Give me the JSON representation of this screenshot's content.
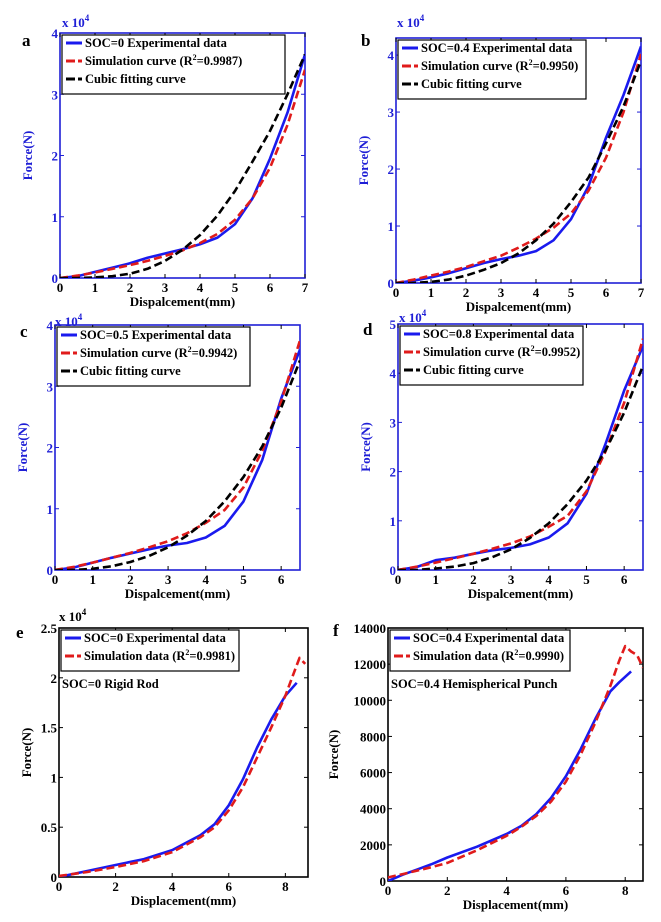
{
  "figure": {
    "panels_count": 6
  },
  "chart_data": [
    {
      "id": "a",
      "type": "line",
      "panel_label": "a",
      "title": "",
      "xlabel": "Dispalcement(mm)",
      "ylabel": "Force(N)",
      "y_multiplier": "x 10^4",
      "y_multiplier_base": "x 10",
      "y_multiplier_exp": "4",
      "xlim": [
        0,
        7
      ],
      "ylim": [
        0,
        4
      ],
      "xticks": [
        0,
        1,
        2,
        3,
        4,
        5,
        6,
        7
      ],
      "yticks": [
        0,
        1,
        2,
        3,
        4
      ],
      "axis_color": "#1f1fd6",
      "legend": {
        "placement": "top-left"
      },
      "annotation": "",
      "series": [
        {
          "name": "SOC=0 Experimental data",
          "style": "solid",
          "color": "#1a1aee",
          "x": [
            0,
            0.5,
            1,
            1.5,
            2,
            2.5,
            3,
            3.5,
            4,
            4.5,
            5,
            5.5,
            6,
            6.5,
            7
          ],
          "y": [
            0,
            0.03,
            0.1,
            0.17,
            0.24,
            0.33,
            0.4,
            0.47,
            0.55,
            0.66,
            0.88,
            1.3,
            1.95,
            2.7,
            3.65
          ]
        },
        {
          "name": "Simulation curve (R²=0.9987)",
          "name_parts": [
            "Simulation curve (R",
            "2",
            "=0.9987)"
          ],
          "style": "dashed",
          "color": "#e01b1b",
          "x": [
            0,
            0.5,
            1,
            1.5,
            2,
            2.5,
            3,
            3.5,
            4,
            4.5,
            5,
            5.5,
            6,
            6.5,
            7
          ],
          "y": [
            0,
            0.04,
            0.09,
            0.15,
            0.21,
            0.28,
            0.36,
            0.45,
            0.57,
            0.72,
            0.95,
            1.3,
            1.8,
            2.5,
            3.4
          ]
        },
        {
          "name": "Cubic fitting curve",
          "style": "dashed",
          "color": "#000000",
          "x": [
            0,
            0.5,
            1,
            1.5,
            2,
            2.5,
            3,
            3.5,
            4,
            4.5,
            5,
            5.5,
            6,
            6.5,
            7
          ],
          "y": [
            0,
            0.0,
            0.01,
            0.03,
            0.07,
            0.15,
            0.28,
            0.46,
            0.7,
            1.02,
            1.42,
            1.9,
            2.4,
            3.0,
            3.65
          ]
        }
      ]
    },
    {
      "id": "b",
      "type": "line",
      "panel_label": "b",
      "title": "",
      "xlabel": "Dispalcement(mm)",
      "ylabel": "Force(N)",
      "y_multiplier": "x 10^4",
      "y_multiplier_base": "x 10",
      "y_multiplier_exp": "4",
      "xlim": [
        0,
        7
      ],
      "ylim": [
        0,
        4.3
      ],
      "xticks": [
        0,
        1,
        2,
        3,
        4,
        5,
        6,
        7
      ],
      "yticks": [
        0,
        1,
        2,
        3,
        4
      ],
      "axis_color": "#1f1fd6",
      "legend": {
        "placement": "top-left"
      },
      "annotation": "",
      "series": [
        {
          "name": "SOC=0.4 Experimental data",
          "style": "solid",
          "color": "#1a1aee",
          "x": [
            0,
            0.5,
            1,
            1.5,
            2,
            2.5,
            3,
            3.5,
            4,
            4.5,
            5,
            5.5,
            6,
            6.5,
            7
          ],
          "y": [
            0,
            0.04,
            0.1,
            0.17,
            0.26,
            0.35,
            0.42,
            0.48,
            0.56,
            0.75,
            1.12,
            1.7,
            2.55,
            3.3,
            4.15
          ]
        },
        {
          "name": "Simulation curve (R²=0.9950)",
          "name_parts": [
            "Simulation curve (R",
            "2",
            "=0.9950)"
          ],
          "style": "dashed",
          "color": "#e01b1b",
          "x": [
            0,
            0.5,
            1,
            1.5,
            2,
            2.5,
            3,
            3.5,
            4,
            4.5,
            5,
            5.5,
            6,
            6.5,
            7
          ],
          "y": [
            0,
            0.06,
            0.13,
            0.2,
            0.28,
            0.38,
            0.48,
            0.62,
            0.78,
            0.97,
            1.22,
            1.62,
            2.2,
            3.0,
            4.02
          ]
        },
        {
          "name": "Cubic fitting curve",
          "style": "dashed",
          "color": "#000000",
          "x": [
            0,
            0.5,
            1,
            1.5,
            2,
            2.5,
            3,
            3.5,
            4,
            4.5,
            5,
            5.5,
            6,
            6.5,
            7
          ],
          "y": [
            0,
            0.0,
            0.02,
            0.06,
            0.13,
            0.23,
            0.35,
            0.52,
            0.75,
            1.04,
            1.42,
            1.85,
            2.45,
            3.1,
            3.9
          ]
        }
      ]
    },
    {
      "id": "c",
      "type": "line",
      "panel_label": "c",
      "title": "",
      "xlabel": "Dispalcement(mm)",
      "ylabel": "Force(N)",
      "y_multiplier": "x 10^4",
      "y_multiplier_base": "x 10",
      "y_multiplier_exp": "4",
      "xlim": [
        0,
        6.5
      ],
      "ylim": [
        0,
        4
      ],
      "xticks": [
        0,
        1,
        2,
        3,
        4,
        5,
        6
      ],
      "yticks": [
        0,
        1,
        2,
        3,
        4
      ],
      "axis_color": "#1f1fd6",
      "legend": {
        "placement": "top-left"
      },
      "annotation": "",
      "series": [
        {
          "name": "SOC=0.5 Experimental data",
          "style": "solid",
          "color": "#1a1aee",
          "x": [
            0,
            0.5,
            1,
            1.5,
            2,
            2.5,
            3,
            3.5,
            4,
            4.5,
            5,
            5.5,
            6,
            6.5
          ],
          "y": [
            0,
            0.04,
            0.12,
            0.2,
            0.27,
            0.34,
            0.4,
            0.44,
            0.53,
            0.72,
            1.12,
            1.8,
            2.8,
            3.6
          ]
        },
        {
          "name": "Simulation curve (R²=0.9942)",
          "name_parts": [
            "Simulation curve (R",
            "2",
            "=0.9942)"
          ],
          "style": "dashed",
          "color": "#e01b1b",
          "x": [
            0,
            0.5,
            1,
            1.5,
            2,
            2.5,
            3,
            3.5,
            4,
            4.5,
            5,
            5.5,
            6,
            6.5
          ],
          "y": [
            0,
            0.05,
            0.12,
            0.2,
            0.28,
            0.37,
            0.47,
            0.6,
            0.77,
            0.98,
            1.35,
            1.95,
            2.75,
            3.75
          ]
        },
        {
          "name": "Cubic fitting curve",
          "style": "dashed",
          "color": "#000000",
          "x": [
            0,
            0.5,
            1,
            1.5,
            2,
            2.5,
            3,
            3.5,
            4,
            4.5,
            5,
            5.5,
            6,
            6.5
          ],
          "y": [
            0,
            0.0,
            0.02,
            0.06,
            0.13,
            0.23,
            0.37,
            0.56,
            0.8,
            1.12,
            1.52,
            2.02,
            2.65,
            3.42
          ]
        }
      ]
    },
    {
      "id": "d",
      "type": "line",
      "panel_label": "d",
      "title": "",
      "xlabel": "Dispalcement(mm)",
      "ylabel": "Force(N)",
      "y_multiplier": "x 10^4",
      "y_multiplier_base": "x 10",
      "y_multiplier_exp": "4",
      "xlim": [
        0,
        6.5
      ],
      "ylim": [
        0,
        5
      ],
      "xticks": [
        0,
        1,
        2,
        3,
        4,
        5,
        6
      ],
      "yticks": [
        0,
        1,
        2,
        3,
        4,
        5
      ],
      "axis_color": "#1f1fd6",
      "legend": {
        "placement": "top-left"
      },
      "annotation": "",
      "series": [
        {
          "name": "SOC=0.8 Experimental data",
          "style": "solid",
          "color": "#1a1aee",
          "x": [
            0,
            0.5,
            1,
            1.5,
            2,
            2.5,
            3,
            3.5,
            4,
            4.5,
            5,
            5.5,
            6,
            6.5
          ],
          "y": [
            0,
            0.06,
            0.2,
            0.25,
            0.33,
            0.4,
            0.45,
            0.52,
            0.66,
            0.95,
            1.55,
            2.55,
            3.65,
            4.55
          ]
        },
        {
          "name": "Simulation curve (R²=0.9952)",
          "name_parts": [
            "Simulation curve (R",
            "2",
            "=0.9952)"
          ],
          "style": "dashed",
          "color": "#e01b1b",
          "x": [
            0,
            0.5,
            1,
            1.5,
            2,
            2.5,
            3,
            3.5,
            4,
            4.5,
            5,
            5.5,
            6,
            6.5
          ],
          "y": [
            0,
            0.07,
            0.15,
            0.24,
            0.33,
            0.43,
            0.54,
            0.68,
            0.88,
            1.1,
            1.6,
            2.4,
            3.4,
            4.7
          ]
        },
        {
          "name": "Cubic fitting curve",
          "style": "dashed",
          "color": "#000000",
          "x": [
            0,
            0.5,
            1,
            1.5,
            2,
            2.5,
            3,
            3.5,
            4,
            4.5,
            5,
            5.5,
            6,
            6.5
          ],
          "y": [
            0,
            0.0,
            0.03,
            0.07,
            0.14,
            0.26,
            0.42,
            0.65,
            0.95,
            1.34,
            1.82,
            2.42,
            3.2,
            4.15
          ]
        }
      ]
    },
    {
      "id": "e",
      "type": "line",
      "panel_label": "e",
      "title": "",
      "xlabel": "Displacement(mm)",
      "ylabel": "Force(N)",
      "y_multiplier": "x 10^4",
      "y_multiplier_base": "x 10",
      "y_multiplier_exp": "4",
      "xlim": [
        0,
        8.8
      ],
      "ylim": [
        0,
        2.5
      ],
      "xticks": [
        0,
        2,
        4,
        6,
        8
      ],
      "yticks": [
        0,
        0.5,
        1,
        1.5,
        2,
        2.5
      ],
      "ytick_labels": [
        "0",
        "0.5",
        "1",
        "1.5",
        "2",
        "2.5"
      ],
      "axis_color": "#000000",
      "legend": {
        "placement": "top-left"
      },
      "annotation": "SOC=0 Rigid Rod",
      "series": [
        {
          "name": "SOC=0 Experimental data",
          "style": "solid",
          "color": "#1a1aee",
          "x": [
            0,
            1,
            2,
            3,
            4,
            5,
            5.5,
            6,
            6.5,
            7,
            7.5,
            8,
            8.4
          ],
          "y": [
            0,
            0.06,
            0.12,
            0.18,
            0.27,
            0.42,
            0.53,
            0.72,
            0.98,
            1.3,
            1.58,
            1.82,
            1.95
          ]
        },
        {
          "name": "Simulation data (R²=0.9981)",
          "name_parts": [
            "Simulation data (R",
            "2",
            "=0.9981)"
          ],
          "style": "dashed",
          "color": "#e01b1b",
          "x": [
            0,
            1,
            2,
            3,
            4,
            5,
            5.5,
            6,
            6.5,
            7,
            7.5,
            8,
            8.3,
            8.5,
            8.7
          ],
          "y": [
            0.01,
            0.05,
            0.1,
            0.16,
            0.25,
            0.4,
            0.5,
            0.67,
            0.9,
            1.2,
            1.5,
            1.82,
            2.05,
            2.2,
            2.14
          ]
        }
      ]
    },
    {
      "id": "f",
      "type": "line",
      "panel_label": "f",
      "title": "",
      "xlabel": "Displacement(mm)",
      "ylabel": "Force(N)",
      "y_multiplier": "",
      "y_multiplier_base": "",
      "y_multiplier_exp": "",
      "xlim": [
        0,
        8.6
      ],
      "ylim": [
        0,
        14000
      ],
      "xticks": [
        0,
        2,
        4,
        6,
        8
      ],
      "yticks": [
        0,
        2000,
        4000,
        6000,
        8000,
        10000,
        12000,
        14000
      ],
      "ytick_labels": [
        "0",
        "2000",
        "4000",
        "6000",
        "8000",
        "10000",
        "12000",
        "14000"
      ],
      "axis_color": "#000000",
      "legend": {
        "placement": "top-left"
      },
      "annotation": "SOC=0.4 Hemispherical Punch",
      "series": [
        {
          "name": "SOC=0.4 Experimental data",
          "style": "solid",
          "color": "#1a1aee",
          "x": [
            0,
            0.5,
            1,
            1.5,
            2,
            3,
            4,
            4.5,
            5,
            5.5,
            6,
            6.5,
            7,
            7.5,
            7.8,
            8.2
          ],
          "y": [
            0,
            350,
            650,
            950,
            1300,
            1900,
            2600,
            3050,
            3700,
            4600,
            5800,
            7300,
            9000,
            10500,
            11000,
            11600
          ]
        },
        {
          "name": "Simulation data (R²=0.9990)",
          "name_parts": [
            "Simulation data (R",
            "2",
            "=0.9990)"
          ],
          "style": "dashed",
          "color": "#e01b1b",
          "x": [
            0,
            0.5,
            1,
            1.5,
            2,
            3,
            4,
            4.5,
            5,
            5.5,
            6,
            6.5,
            7,
            7.5,
            7.8,
            8.0,
            8.2,
            8.4,
            8.6
          ],
          "y": [
            200,
            380,
            580,
            780,
            1000,
            1700,
            2500,
            3000,
            3600,
            4400,
            5500,
            7000,
            8800,
            10800,
            12200,
            13000,
            12700,
            12500,
            11800
          ]
        }
      ]
    }
  ]
}
